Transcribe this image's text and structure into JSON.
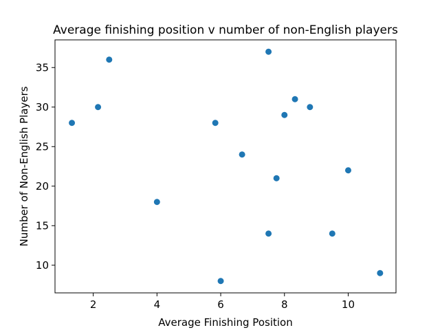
{
  "chart_data": {
    "type": "scatter",
    "title": "Average finishing position v number of non-English players",
    "xlabel": "Average Finishing Position",
    "ylabel": "Number of Non-English Players",
    "xlim": [
      0.8,
      11.5
    ],
    "ylim": [
      6.5,
      38.5
    ],
    "xticks": [
      2,
      4,
      6,
      8,
      10
    ],
    "yticks": [
      10,
      15,
      20,
      25,
      30,
      35
    ],
    "grid": false,
    "marker_color": "#1f77b4",
    "points": [
      {
        "x": 1.33,
        "y": 28
      },
      {
        "x": 2.15,
        "y": 30
      },
      {
        "x": 2.5,
        "y": 36
      },
      {
        "x": 4.0,
        "y": 18
      },
      {
        "x": 5.83,
        "y": 28
      },
      {
        "x": 6.0,
        "y": 8
      },
      {
        "x": 6.67,
        "y": 24
      },
      {
        "x": 7.5,
        "y": 37
      },
      {
        "x": 7.5,
        "y": 14
      },
      {
        "x": 7.75,
        "y": 21
      },
      {
        "x": 8.0,
        "y": 29
      },
      {
        "x": 8.33,
        "y": 31
      },
      {
        "x": 8.8,
        "y": 30
      },
      {
        "x": 9.5,
        "y": 14
      },
      {
        "x": 10.0,
        "y": 22
      },
      {
        "x": 11.0,
        "y": 9
      }
    ]
  }
}
